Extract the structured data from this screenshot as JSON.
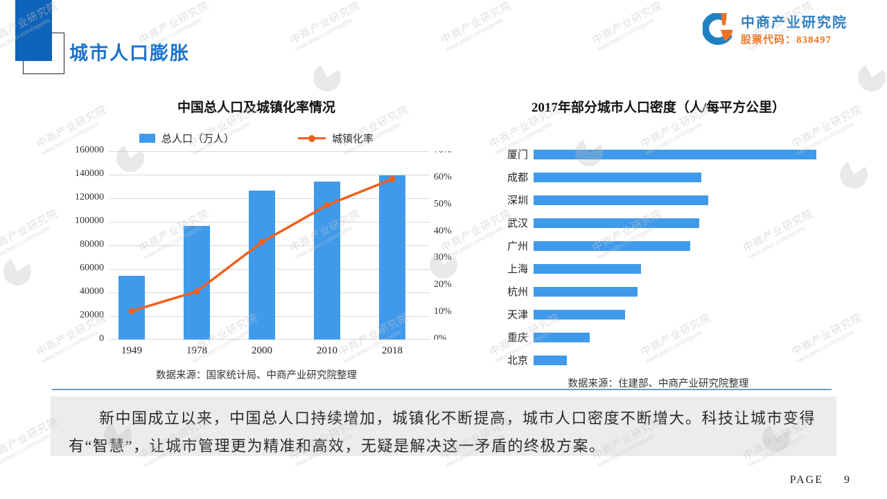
{
  "slide": {
    "title": "城市人口膨胀",
    "page_label": "PAGE",
    "page_number": "9"
  },
  "logo": {
    "name": "中商产业研究院",
    "stock_label": "股票代码：838497"
  },
  "watermark": {
    "line1": "中商产业研究院",
    "line2": "www.askci.com/reports"
  },
  "colors": {
    "accent_blue": "#1B74CE",
    "bar_blue": "#3F9AEC",
    "line_orange": "#F1601D",
    "logo_blue": "#2E7EC0",
    "logo_orange": "#F0741F",
    "header_block_blue": "#0E63BA",
    "divider_blue": "#6B9AC7",
    "note_bg": "#ECECEC",
    "grid_gray": "#D9D9D9"
  },
  "chart_data": [
    {
      "type": "bar",
      "subtype": "combo-bar-line",
      "title": "中国总人口及城镇化率情况",
      "categories": [
        "1949",
        "1978",
        "2000",
        "2010",
        "2018"
      ],
      "series": [
        {
          "name": "总人口（万人）",
          "type": "bar",
          "yaxis": "left",
          "values": [
            54167,
            96259,
            126743,
            134091,
            139538
          ]
        },
        {
          "name": "城镇化率",
          "type": "line",
          "yaxis": "right",
          "unit": "%",
          "values": [
            10.6,
            17.9,
            36.2,
            49.9,
            59.6
          ]
        }
      ],
      "left_axis": {
        "min": 0,
        "max": 160000,
        "step": 20000,
        "ticks": [
          "0",
          "20000",
          "40000",
          "60000",
          "80000",
          "100000",
          "120000",
          "140000",
          "160000"
        ]
      },
      "right_axis": {
        "min": 0,
        "max": 70,
        "step": 10,
        "ticks": [
          "0%",
          "10%",
          "20%",
          "30%",
          "40%",
          "50%",
          "60%",
          "70%"
        ]
      },
      "grid": true,
      "legend_position": "top",
      "source": "数据来源：国家统计局、中商产业研究院整理"
    },
    {
      "type": "bar",
      "orientation": "horizontal",
      "title": "2017年部分城市人口密度（人/每平方公里）",
      "categories": [
        "厦门",
        "成都",
        "深圳",
        "武汉",
        "广州",
        "上海",
        "杭州",
        "天津",
        "重庆",
        "北京"
      ],
      "values": [
        12800,
        7600,
        7900,
        7500,
        7100,
        4850,
        4700,
        4150,
        2550,
        1500
      ],
      "xlim": [
        0,
        12800
      ],
      "axis_labels_shown": false,
      "source": "数据来源：住建部、中商产业研究院整理"
    }
  ],
  "note": {
    "text": "新中国成立以来，中国总人口持续增加，城镇化不断提高，城市人口密度不断增大。科技让城市变得有“智慧”，让城市管理更为精准和高效，无疑是解决这一矛盾的终极方案。"
  }
}
